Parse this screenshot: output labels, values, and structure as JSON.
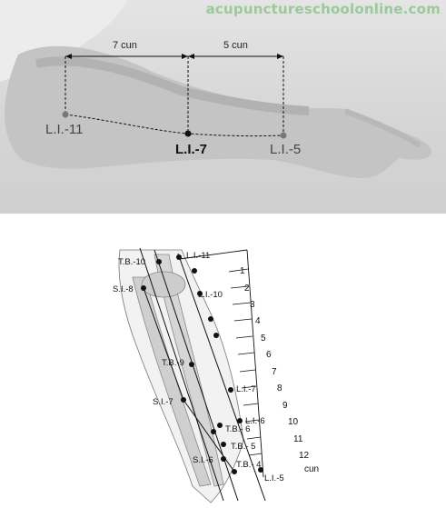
{
  "watermark": "acupunctureschoolonline.com",
  "photo": {
    "distances": [
      {
        "label": "7 cun"
      },
      {
        "label": "5 cun"
      }
    ],
    "points": [
      {
        "label": "L.I.-11"
      },
      {
        "label": "L.I.-7"
      },
      {
        "label": "L.I.-5"
      }
    ]
  },
  "diagram": {
    "points": [
      {
        "label": "T.B.-10"
      },
      {
        "label": "L.I.-11"
      },
      {
        "label": "S.I.-8"
      },
      {
        "label": "L.I.-10"
      },
      {
        "label": "T.B.-9"
      },
      {
        "label": "L.I.-7"
      },
      {
        "label": "S.I.-7"
      },
      {
        "label": "L.I.-6"
      },
      {
        "label": "T.B.- 6"
      },
      {
        "label": "T.B.- 5"
      },
      {
        "label": "S.I.-6"
      },
      {
        "label": "T.B.- 4"
      },
      {
        "label": "L.I.-5"
      }
    ],
    "scale_numbers": [
      "1",
      "2",
      "3",
      "4",
      "5",
      "6",
      "7",
      "8",
      "9",
      "10",
      "11",
      "12"
    ],
    "scale_unit": "cun"
  },
  "colors": {
    "photo_bg": "#d8d8d8",
    "watermark": "#9bc99a",
    "point_gray": "#777777",
    "point_dark": "#111111"
  }
}
